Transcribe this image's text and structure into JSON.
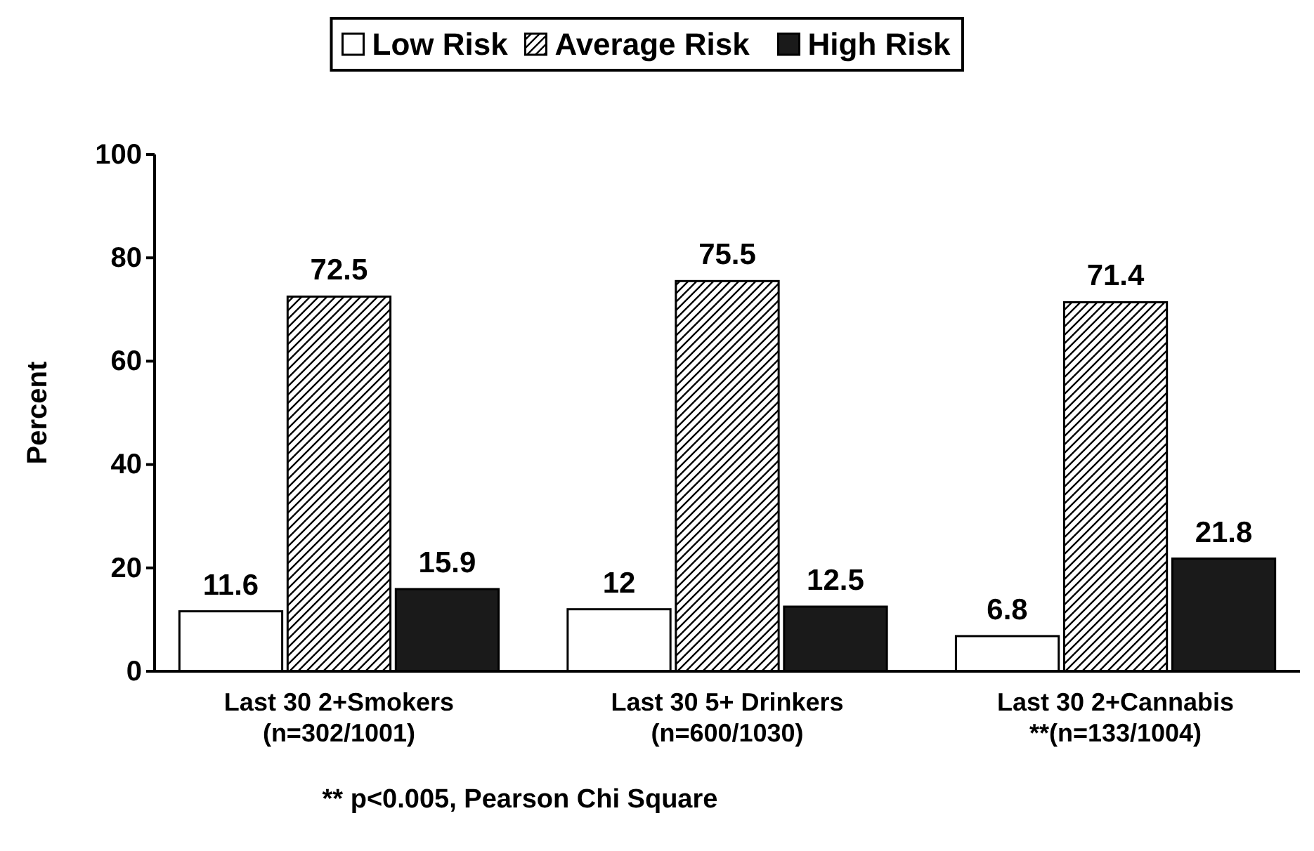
{
  "chart_data": {
    "type": "bar",
    "ylabel": "Percent",
    "categories": [
      "Last 30 2+Smokers\n(n=302/1001)",
      "Last 30 5+ Drinkers\n(n=600/1030)",
      "Last 30 2+Cannabis\n**(n=133/1004)"
    ],
    "series": [
      {
        "name": "Low Risk",
        "color": "#ffffff",
        "values": [
          11.6,
          12,
          6.8
        ]
      },
      {
        "name": "Average Risk",
        "color": "#000000",
        "values": [
          72.5,
          75.5,
          71.4
        ]
      },
      {
        "name": "High Risk",
        "color": "#1a1a1a",
        "values": [
          15.9,
          12.5,
          21.8
        ]
      }
    ],
    "ylim": [
      0,
      100
    ],
    "yticks": [
      0,
      20,
      40,
      60,
      80,
      100
    ],
    "grid": false,
    "legend": "top",
    "data_labels": true,
    "annotations": [
      "** p<0.005, Pearson Chi Square"
    ]
  }
}
